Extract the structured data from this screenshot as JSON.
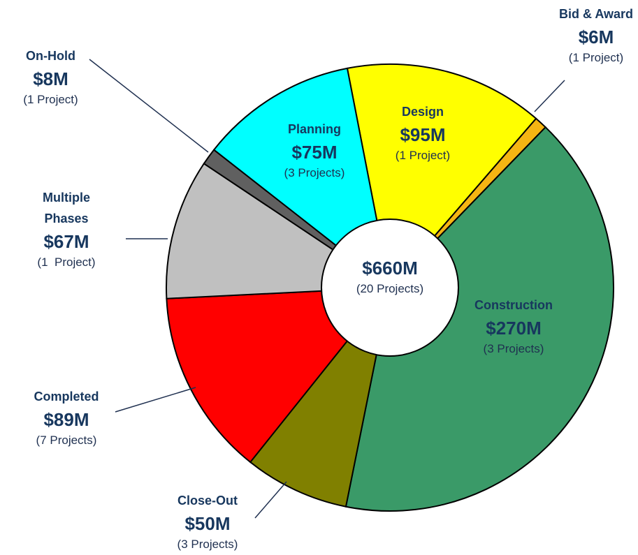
{
  "chart_data": {
    "type": "donut",
    "categories": [
      "Design",
      "Bid & Award",
      "Construction",
      "Close-Out",
      "Completed",
      "Multiple Phases",
      "On-Hold",
      "Planning"
    ],
    "values": [
      95,
      6,
      270,
      50,
      89,
      67,
      8,
      75
    ],
    "value_labels": [
      "$95M",
      "$6M",
      "$270M",
      "$50M",
      "$89M",
      "$67M",
      "$8M",
      "$75M"
    ],
    "details": [
      "(1 Project)",
      "(1 Project)",
      "(3 Projects)",
      "(3 Projects)",
      "(7 Projects)",
      "(1  Project)",
      "(1 Project)",
      "(3 Projects)"
    ],
    "colors": [
      "#ffff00",
      "#f5b513",
      "#3a9a68",
      "#808000",
      "#ff0000",
      "#c0c0c0",
      "#606060",
      "#00ffff"
    ],
    "center_label": "$660M",
    "center_detail": "(20 Projects)"
  }
}
